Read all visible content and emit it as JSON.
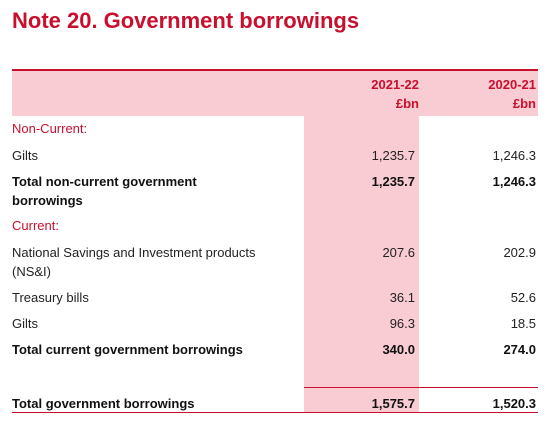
{
  "note": {
    "number": "Note 20.",
    "title": "Government borrowings"
  },
  "columns": [
    {
      "year": "2021-22",
      "unit": "£bn"
    },
    {
      "year": "2020-21",
      "unit": "£bn"
    }
  ],
  "sections": {
    "non_current": "Non-Current:",
    "current": "Current:"
  },
  "rows": {
    "gilts_nc": {
      "label": "Gilts",
      "v1": "1,235.7",
      "v2": "1,246.3"
    },
    "total_nc": {
      "label_l1": "Total non-current government",
      "label_l2": "borrowings",
      "v1": "1,235.7",
      "v2": "1,246.3"
    },
    "nsi": {
      "label_l1": "National Savings and Investment products",
      "label_l2": "(NS&I)",
      "v1": "207.6",
      "v2": "202.9"
    },
    "treasury": {
      "label": "Treasury bills",
      "v1": "36.1",
      "v2": "52.6"
    },
    "gilts_c": {
      "label": "Gilts",
      "v1": "96.3",
      "v2": "18.5"
    },
    "total_c": {
      "label": "Total current government borrowings",
      "v1": "340.0",
      "v2": "274.0"
    },
    "total": {
      "label": "Total government borrowings",
      "v1": "1,575.7",
      "v2": "1,520.3"
    }
  }
}
